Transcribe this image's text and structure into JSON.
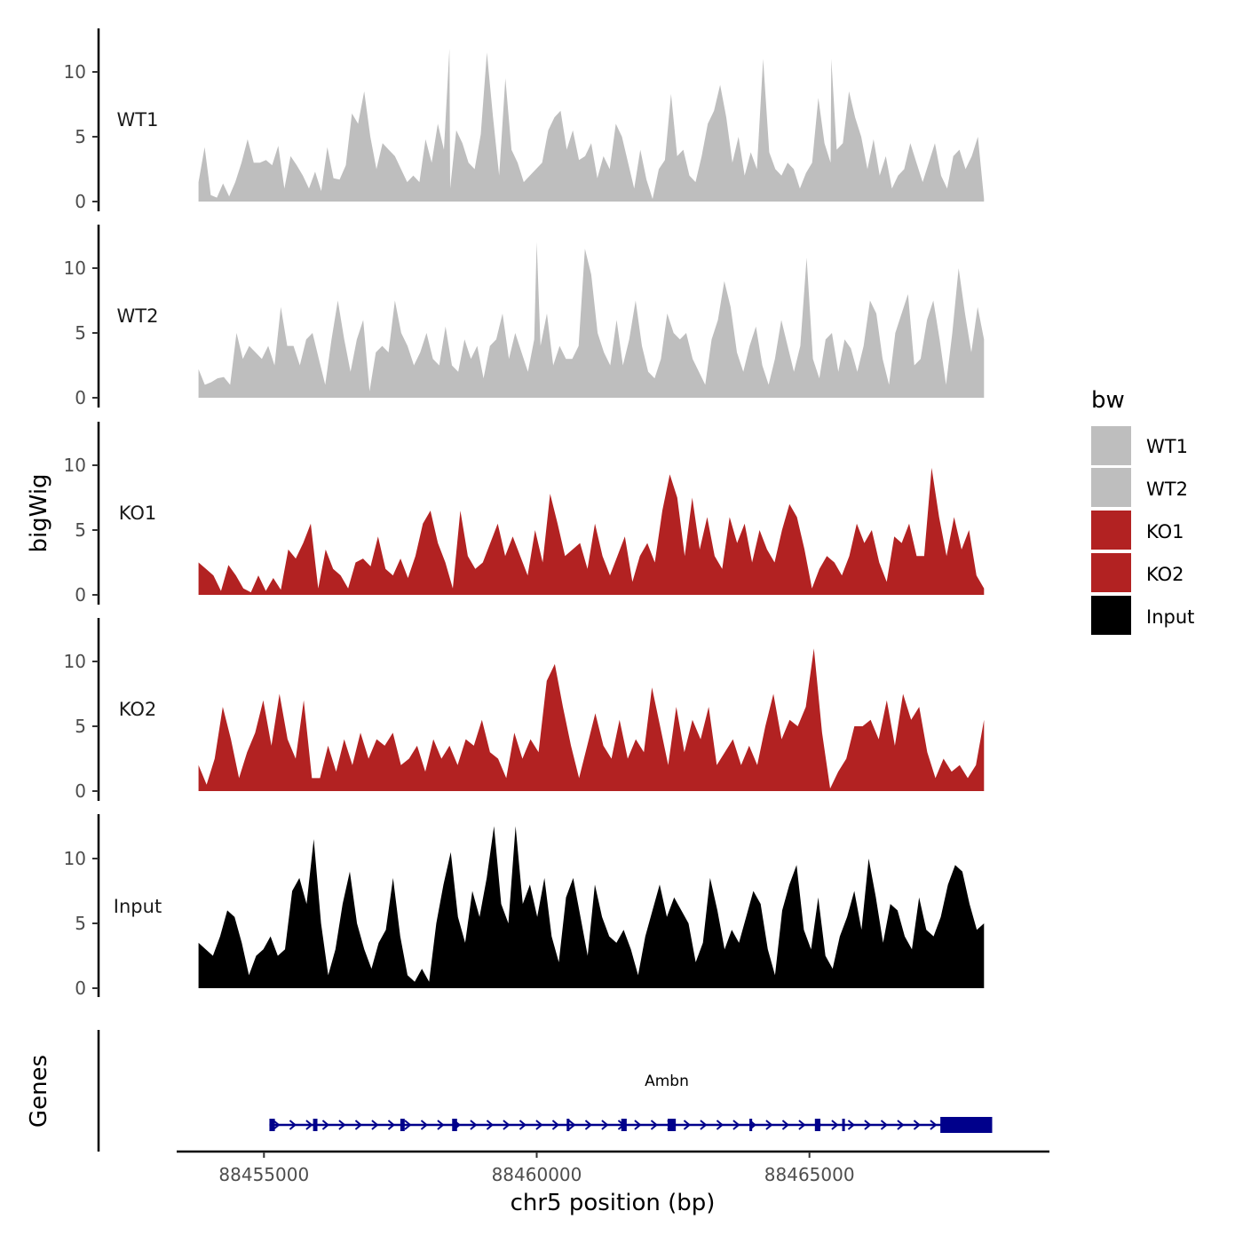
{
  "chart_data": {
    "type": "area",
    "subtype": "genome-browser-tracks",
    "x_title": "chr5 position (bp)",
    "y_title_tracks": "bigWig",
    "y_title_genes": "Genes",
    "xlim": [
      88453400,
      88469400
    ],
    "ylim": [
      0,
      13.5
    ],
    "x_ticks": [
      88455000,
      88460000,
      88465000
    ],
    "x_tick_labels": [
      "88455000",
      "88460000",
      "88465000"
    ],
    "y_ticks": [
      0,
      5,
      10
    ],
    "y_tick_labels": [
      "0",
      "5",
      "10"
    ],
    "x_range_data": [
      88453800,
      88468200
    ],
    "legend": {
      "title": "bw",
      "position": "right",
      "entries": [
        {
          "name": "WT1",
          "color": "#bebebe"
        },
        {
          "name": "WT2",
          "color": "#bebebe"
        },
        {
          "name": "KO1",
          "color": "#b22222"
        },
        {
          "name": "KO2",
          "color": "#b22222"
        },
        {
          "name": "Input",
          "color": "#000000"
        }
      ]
    },
    "series": [
      {
        "name": "WT1",
        "color": "#bebebe",
        "values": [
          1.5,
          4.2,
          0.5,
          0.3,
          1.4,
          0.4,
          1.5,
          3.0,
          4.8,
          3.0,
          3.0,
          3.2,
          2.8,
          4.3,
          1.0,
          3.5,
          2.8,
          2.0,
          1.0,
          2.3,
          0.8,
          4.2,
          1.8,
          1.7,
          2.8,
          6.8,
          6.0,
          8.5,
          5.0,
          2.5,
          4.5,
          4.0,
          3.5,
          2.5,
          1.5,
          2.0,
          1.5,
          4.8,
          3.0,
          6.0,
          4.0,
          1.0,
          5.5,
          4.5,
          3.0,
          2.5,
          5.2,
          11.5,
          6.5,
          2.0,
          9.5,
          4.0,
          3.0,
          1.5,
          2.0,
          2.5,
          3.0,
          5.5,
          6.5,
          7.0,
          4.0,
          5.5,
          3.2,
          3.5,
          4.5,
          1.8,
          3.5,
          2.5,
          6.0,
          5.0,
          3.0,
          1.0,
          4.0,
          1.7,
          0.2,
          2.5,
          3.2,
          8.3,
          3.5,
          4.0,
          2.0,
          1.5,
          3.5,
          6.0,
          7.0,
          9.0,
          6.5,
          3.0,
          5.0,
          2.0,
          3.8,
          2.5,
          11.0,
          3.8,
          2.5,
          2.0,
          3.0,
          2.5,
          1.0,
          2.2,
          3.0,
          8.0,
          4.5,
          3.0,
          4.0,
          4.5,
          8.5,
          6.5,
          5.0,
          2.5,
          4.8,
          2.0,
          3.5,
          1.0,
          2.0,
          2.5,
          4.5,
          3.0,
          1.5,
          3.0,
          4.5,
          2.0,
          1.0,
          3.5,
          4.0,
          2.5,
          3.5,
          5.0,
          0.2
        ],
        "peaks": [
          {
            "x": 88458400,
            "y": 11.8
          },
          {
            "x": 88465400,
            "y": 11.0
          }
        ]
      },
      {
        "name": "WT2",
        "color": "#bebebe",
        "values": [
          2.2,
          1.0,
          1.2,
          1.5,
          1.6,
          1.0,
          5.0,
          3.0,
          4.0,
          3.5,
          3.0,
          4.0,
          2.5,
          7.0,
          4.0,
          4.0,
          2.5,
          4.5,
          5.0,
          3.0,
          1.0,
          4.5,
          7.5,
          4.5,
          2.0,
          4.5,
          6.0,
          0.5,
          3.5,
          4.0,
          3.5,
          7.5,
          5.0,
          4.0,
          2.5,
          3.5,
          5.0,
          3.0,
          2.5,
          5.5,
          2.5,
          2.0,
          4.5,
          3.0,
          4.0,
          1.5,
          4.0,
          4.5,
          6.5,
          3.0,
          5.0,
          3.5,
          2.0,
          4.5,
          4.0,
          6.5,
          2.5,
          4.0,
          3.0,
          3.0,
          4.0,
          11.5,
          9.5,
          5.0,
          3.5,
          2.5,
          6.0,
          2.5,
          4.5,
          7.5,
          4.0,
          2.0,
          1.5,
          3.0,
          6.5,
          5.0,
          4.5,
          5.0,
          3.0,
          2.0,
          1.0,
          4.5,
          6.0,
          9.0,
          7.0,
          3.5,
          2.0,
          4.0,
          5.5,
          2.5,
          1.0,
          3.0,
          6.0,
          4.0,
          2.0,
          4.0,
          10.8,
          3.0,
          1.5,
          4.5,
          5.0,
          2.0,
          4.5,
          3.8,
          2.0,
          4.0,
          7.5,
          6.5,
          3.0,
          1.0,
          5.0,
          6.5,
          8.0,
          2.5,
          3.0,
          6.0,
          7.5,
          4.5,
          1.0,
          5.0,
          10.0,
          6.5,
          3.5,
          7.0,
          4.5
        ],
        "peaks": [
          {
            "x": 88460000,
            "y": 12.0
          }
        ]
      },
      {
        "name": "KO1",
        "color": "#b22222",
        "values": [
          2.5,
          2.0,
          1.5,
          0.3,
          2.3,
          1.5,
          0.5,
          0.2,
          1.5,
          0.3,
          1.3,
          0.4,
          3.5,
          2.8,
          4.0,
          5.5,
          0.5,
          3.5,
          2.0,
          1.5,
          0.5,
          2.5,
          2.8,
          2.2,
          4.5,
          2.0,
          1.5,
          2.8,
          1.3,
          3.0,
          5.5,
          6.5,
          4.0,
          2.5,
          0.5,
          6.5,
          3.0,
          2.0,
          2.5,
          4.0,
          5.5,
          3.0,
          4.5,
          3.0,
          1.5,
          5.0,
          2.5,
          7.8,
          5.5,
          3.0,
          3.5,
          4.0,
          2.0,
          5.5,
          3.0,
          1.5,
          3.0,
          4.5,
          1.0,
          3.0,
          4.0,
          2.5,
          6.5,
          9.3,
          7.5,
          3.0,
          7.5,
          3.5,
          6.0,
          3.0,
          2.0,
          6.0,
          4.0,
          5.5,
          2.5,
          5.0,
          3.5,
          2.5,
          5.0,
          7.0,
          6.0,
          3.5,
          0.5,
          2.0,
          3.0,
          2.5,
          1.5,
          3.0,
          5.5,
          4.0,
          5.0,
          2.5,
          1.0,
          4.5,
          4.0,
          5.5,
          3.0,
          3.0,
          9.8,
          6.0,
          3.0,
          6.0,
          3.5,
          5.0,
          1.5,
          0.5
        ],
        "peaks": []
      },
      {
        "name": "KO2",
        "color": "#b22222",
        "values": [
          2.0,
          0.5,
          2.5,
          6.5,
          4.0,
          1.0,
          3.0,
          4.5,
          7.0,
          3.5,
          7.5,
          4.0,
          2.5,
          7.0,
          1.0,
          1.0,
          3.5,
          1.5,
          4.0,
          2.0,
          4.5,
          2.5,
          4.0,
          3.5,
          4.5,
          2.0,
          2.5,
          3.5,
          1.5,
          4.0,
          2.5,
          3.5,
          2.0,
          4.0,
          3.5,
          5.5,
          3.0,
          2.5,
          1.0,
          4.5,
          2.5,
          4.0,
          3.0,
          8.5,
          9.8,
          6.5,
          3.5,
          1.0,
          3.5,
          6.0,
          3.5,
          2.5,
          5.5,
          2.5,
          4.0,
          3.0,
          8.0,
          5.0,
          2.0,
          6.5,
          3.0,
          5.5,
          4.0,
          6.5,
          2.0,
          3.0,
          4.0,
          2.0,
          3.5,
          2.0,
          5.0,
          7.5,
          4.0,
          5.5,
          5.0,
          6.5,
          11.0,
          4.5,
          0.2,
          1.5,
          2.5,
          5.0,
          5.0,
          5.5,
          4.0,
          7.0,
          3.5,
          7.5,
          5.5,
          6.5,
          3.0,
          1.0,
          2.5,
          1.5,
          2.0,
          1.0,
          2.0,
          5.5
        ],
        "peaks": []
      },
      {
        "name": "Input",
        "color": "#000000",
        "values": [
          3.5,
          3.0,
          2.5,
          4.0,
          6.0,
          5.5,
          3.5,
          1.0,
          2.5,
          3.0,
          4.0,
          2.5,
          3.0,
          7.5,
          8.5,
          6.5,
          11.5,
          5.0,
          1.0,
          3.0,
          6.5,
          9.0,
          5.0,
          3.0,
          1.5,
          3.5,
          4.5,
          8.5,
          4.0,
          1.0,
          0.5,
          1.5,
          0.5,
          5.0,
          8.0,
          10.5,
          5.5,
          3.5,
          7.5,
          5.5,
          8.5,
          12.5,
          6.5,
          5.0,
          12.5,
          6.5,
          8.0,
          5.5,
          8.5,
          4.0,
          2.0,
          7.0,
          8.5,
          5.5,
          2.5,
          8.0,
          5.5,
          4.0,
          3.5,
          4.5,
          3.0,
          1.0,
          4.0,
          6.0,
          8.0,
          5.5,
          7.0,
          6.0,
          5.0,
          2.0,
          3.5,
          8.5,
          6.0,
          3.0,
          4.5,
          3.5,
          5.5,
          7.5,
          6.5,
          3.0,
          1.0,
          6.0,
          8.0,
          9.5,
          4.5,
          3.0,
          7.0,
          2.5,
          1.5,
          4.0,
          5.5,
          7.5,
          4.5,
          10.0,
          7.0,
          3.5,
          6.5,
          6.0,
          4.0,
          3.0,
          7.0,
          4.5,
          4.0,
          5.5,
          8.0,
          9.5,
          9.0,
          6.5,
          4.5,
          5.0
        ],
        "peaks": []
      }
    ],
    "genes": [
      {
        "name": "Ambn",
        "color": "#00008b",
        "strand": "+",
        "start": 88455100,
        "end": 88468350,
        "exons": [
          [
            88455100,
            88455200
          ],
          [
            88455900,
            88455980
          ],
          [
            88457500,
            88457580
          ],
          [
            88458450,
            88458540
          ],
          [
            88460550,
            88460600
          ],
          [
            88461550,
            88461650
          ],
          [
            88462400,
            88462550
          ],
          [
            88463900,
            88463950
          ],
          [
            88465100,
            88465200
          ],
          [
            88465600,
            88465650
          ],
          [
            88467400,
            88468350
          ]
        ]
      }
    ]
  }
}
